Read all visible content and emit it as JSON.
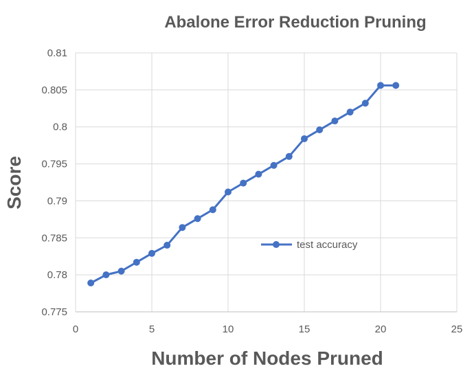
{
  "chart_data": {
    "type": "line",
    "title": "Abalone Error Reduction Pruning",
    "xlabel": "Number of Nodes Pruned",
    "ylabel": "Score",
    "xlim": [
      0,
      25
    ],
    "ylim": [
      0.775,
      0.81
    ],
    "x_ticks": [
      0,
      5,
      10,
      15,
      20,
      25
    ],
    "x_tick_labels": [
      "0",
      "5",
      "10",
      "15",
      "20",
      "25"
    ],
    "y_ticks": [
      0.775,
      0.78,
      0.785,
      0.79,
      0.795,
      0.8,
      0.805,
      0.81
    ],
    "y_tick_labels": [
      "0.775",
      "0.78",
      "0.785",
      "0.79",
      "0.795",
      "0.8",
      "0.805",
      "0.81"
    ],
    "grid": true,
    "legend_position": "center-right",
    "color": "#4472C4",
    "series": [
      {
        "name": "test accuracy",
        "x": [
          1,
          2,
          3,
          4,
          5,
          6,
          7,
          8,
          9,
          10,
          11,
          12,
          13,
          14,
          15,
          16,
          17,
          18,
          19,
          20,
          21
        ],
        "values": [
          0.7789,
          0.78,
          0.7805,
          0.7817,
          0.7829,
          0.784,
          0.7864,
          0.7876,
          0.7888,
          0.7912,
          0.7924,
          0.7936,
          0.7948,
          0.796,
          0.7984,
          0.7996,
          0.8008,
          0.802,
          0.8032,
          0.8056,
          0.8056
        ]
      }
    ]
  }
}
